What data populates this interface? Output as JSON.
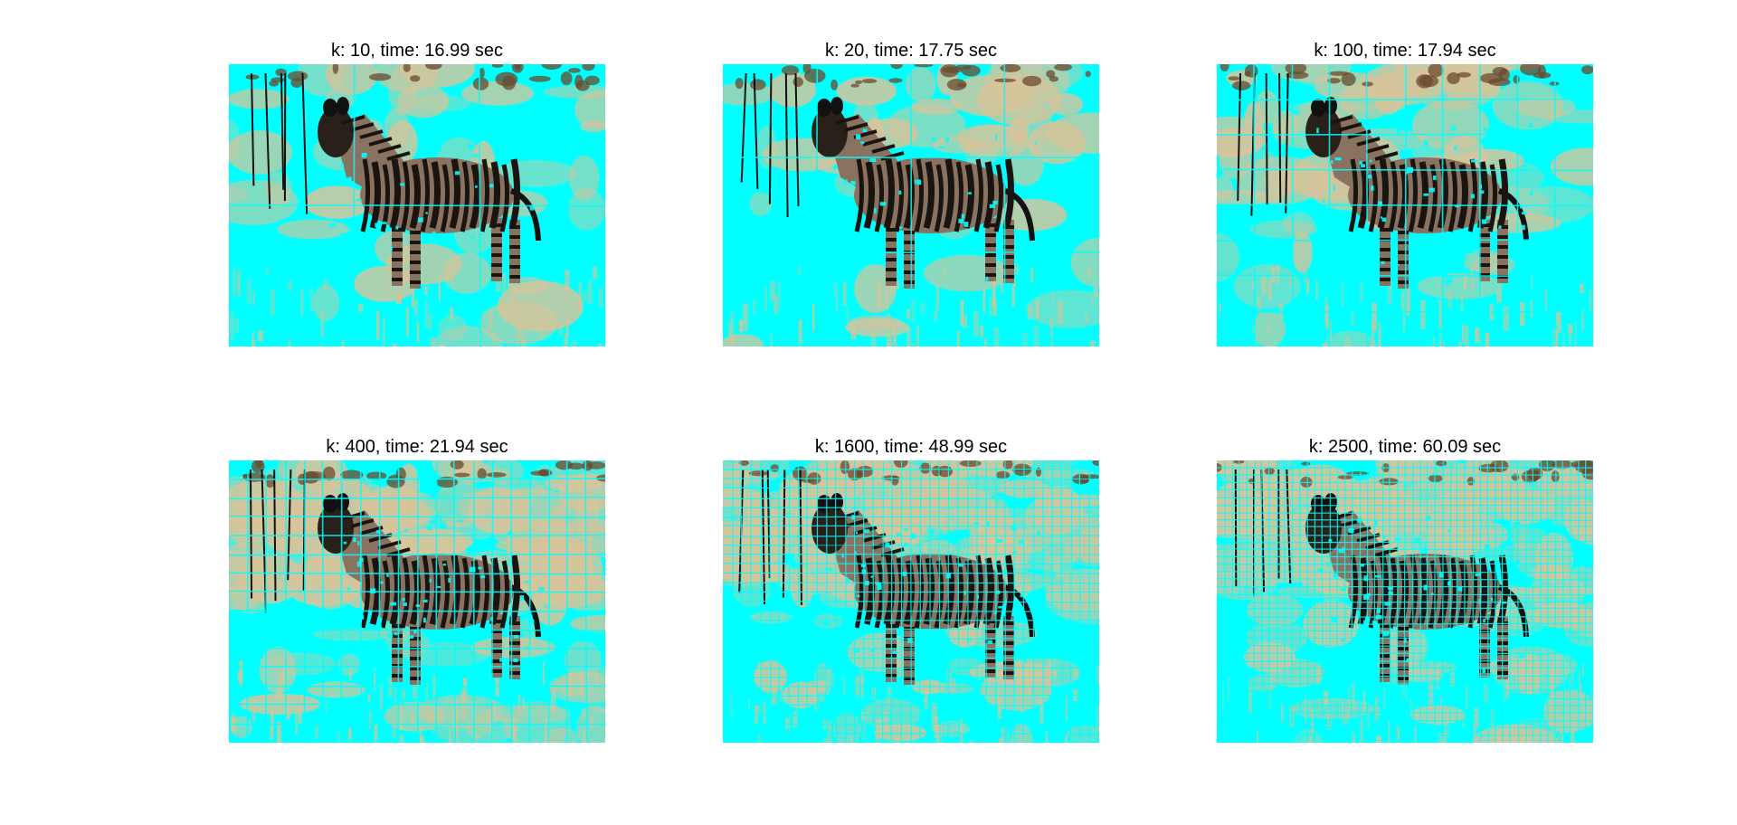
{
  "colors": {
    "background": "#ffffff",
    "superpixel_boundary": "#00ffff",
    "dry_grass": "#d8c49a",
    "dark_ground": "#6b4a2e",
    "zebra_stripe": "#1a1410",
    "zebra_light": "#8a7260"
  },
  "panels": [
    {
      "title": "k: 10, time: 16.99 sec",
      "k": 10,
      "time_sec": 16.99
    },
    {
      "title": "k: 20, time: 17.75 sec",
      "k": 20,
      "time_sec": 17.75
    },
    {
      "title": "k: 100, time: 17.94 sec",
      "k": 100,
      "time_sec": 17.94
    },
    {
      "title": "k: 400, time: 21.94 sec",
      "k": 400,
      "time_sec": 21.94
    },
    {
      "title": "k: 1600, time: 48.99 sec",
      "k": 1600,
      "time_sec": 48.99
    },
    {
      "title": "k: 2500, time: 60.09 sec",
      "k": 2500,
      "time_sec": 60.09
    }
  ]
}
